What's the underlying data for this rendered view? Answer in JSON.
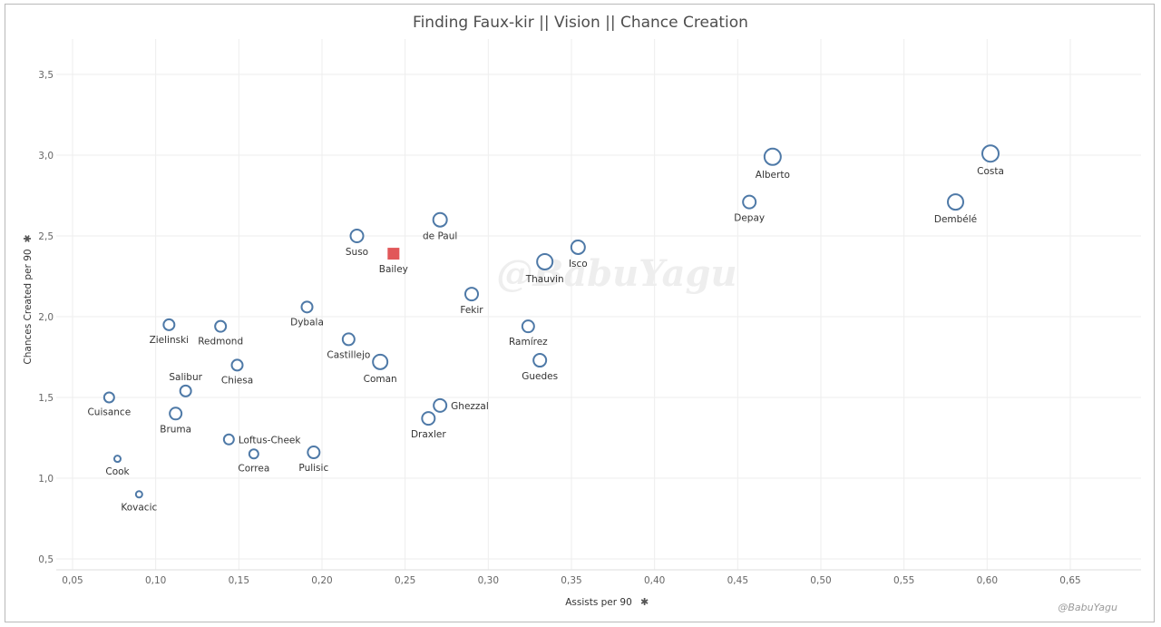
{
  "chart_data": {
    "type": "scatter",
    "title": "Finding Faux-kir  ||  Vision  ||  Chance Creation",
    "xlabel": "Assists per 90",
    "ylabel": "Chances Created per 90",
    "xlim": [
      0.04,
      0.69
    ],
    "ylim": [
      0.45,
      3.75
    ],
    "x_ticks": [
      "0,05",
      "0,10",
      "0,15",
      "0,20",
      "0,25",
      "0,30",
      "0,35",
      "0,40",
      "0,45",
      "0,50",
      "0,55",
      "0,60",
      "0,65"
    ],
    "x_tick_values": [
      0.05,
      0.1,
      0.15,
      0.2,
      0.25,
      0.3,
      0.35,
      0.4,
      0.45,
      0.5,
      0.55,
      0.6,
      0.65
    ],
    "y_ticks": [
      "0,5",
      "1,0",
      "1,5",
      "2,0",
      "2,5",
      "3,0",
      "3,5"
    ],
    "y_tick_values": [
      0.5,
      1.0,
      1.5,
      2.0,
      2.5,
      3.0,
      3.5
    ],
    "grid": true,
    "legend": "none",
    "colors": {
      "marker": "#4e79a7",
      "highlight": "#e15759",
      "grid": "#eeeeee"
    },
    "points": [
      {
        "name": "Costa",
        "x": 0.602,
        "y": 3.01,
        "r": 9,
        "label_pos": "below"
      },
      {
        "name": "Alberto",
        "x": 0.471,
        "y": 2.99,
        "r": 9,
        "label_pos": "below"
      },
      {
        "name": "Dembélé",
        "x": 0.581,
        "y": 2.71,
        "r": 8.5,
        "label_pos": "below"
      },
      {
        "name": "Depay",
        "x": 0.457,
        "y": 2.71,
        "r": 7,
        "label_pos": "below"
      },
      {
        "name": "de Paul",
        "x": 0.271,
        "y": 2.6,
        "r": 7.5,
        "label_pos": "below"
      },
      {
        "name": "Suso",
        "x": 0.221,
        "y": 2.5,
        "r": 7,
        "label_pos": "below"
      },
      {
        "name": "Bailey",
        "x": 0.243,
        "y": 2.39,
        "r": 6.5,
        "label_pos": "below",
        "highlight": true
      },
      {
        "name": "Isco",
        "x": 0.354,
        "y": 2.43,
        "r": 7.5,
        "label_pos": "below"
      },
      {
        "name": "Thauvin",
        "x": 0.334,
        "y": 2.34,
        "r": 8.5,
        "label_pos": "below"
      },
      {
        "name": "Fekir",
        "x": 0.29,
        "y": 2.14,
        "r": 7,
        "label_pos": "below"
      },
      {
        "name": "Dybala",
        "x": 0.191,
        "y": 2.06,
        "r": 6,
        "label_pos": "below"
      },
      {
        "name": "Zielinski",
        "x": 0.108,
        "y": 1.95,
        "r": 6,
        "label_pos": "below"
      },
      {
        "name": "Redmond",
        "x": 0.139,
        "y": 1.94,
        "r": 6,
        "label_pos": "below"
      },
      {
        "name": "Ramírez",
        "x": 0.324,
        "y": 1.94,
        "r": 6.5,
        "label_pos": "below"
      },
      {
        "name": "Castillejo",
        "x": 0.216,
        "y": 1.86,
        "r": 6.5,
        "label_pos": "below"
      },
      {
        "name": "Coman",
        "x": 0.235,
        "y": 1.72,
        "r": 8,
        "label_pos": "below"
      },
      {
        "name": "Guedes",
        "x": 0.331,
        "y": 1.73,
        "r": 7,
        "label_pos": "below"
      },
      {
        "name": "Chiesa",
        "x": 0.149,
        "y": 1.7,
        "r": 6,
        "label_pos": "below"
      },
      {
        "name": "Salibur",
        "x": 0.118,
        "y": 1.54,
        "r": 6,
        "label_pos": "above"
      },
      {
        "name": "Cuisance",
        "x": 0.072,
        "y": 1.5,
        "r": 5.5,
        "label_pos": "below"
      },
      {
        "name": "Ghezzal",
        "x": 0.271,
        "y": 1.45,
        "r": 7,
        "label_pos": "right"
      },
      {
        "name": "Bruma",
        "x": 0.112,
        "y": 1.4,
        "r": 6.5,
        "label_pos": "below"
      },
      {
        "name": "Draxler",
        "x": 0.264,
        "y": 1.37,
        "r": 7,
        "label_pos": "below"
      },
      {
        "name": "Loftus-Cheek",
        "x": 0.144,
        "y": 1.24,
        "r": 5.5,
        "label_pos": "right"
      },
      {
        "name": "Pulisic",
        "x": 0.195,
        "y": 1.16,
        "r": 6.5,
        "label_pos": "below"
      },
      {
        "name": "Correa",
        "x": 0.159,
        "y": 1.15,
        "r": 5,
        "label_pos": "below"
      },
      {
        "name": "Cook",
        "x": 0.077,
        "y": 1.12,
        "r": 3.5,
        "label_pos": "below"
      },
      {
        "name": "Kovacic",
        "x": 0.09,
        "y": 0.9,
        "r": 3.5,
        "label_pos": "below"
      }
    ]
  },
  "watermark": "@BabuYagu",
  "credit": "@BabuYagu"
}
